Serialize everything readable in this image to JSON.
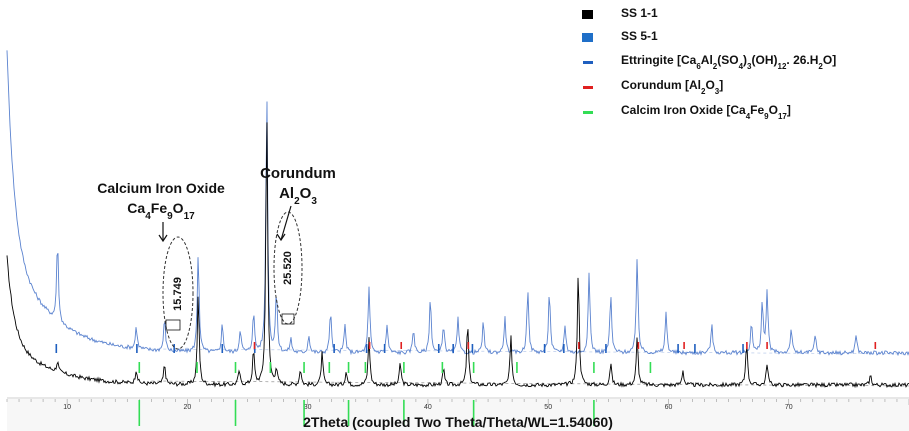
{
  "chart_data": {
    "type": "line",
    "title": "",
    "xlabel": "2Theta (coupled Two Theta/Theta/WL=1.54060)",
    "ylabel": "",
    "xlim": [
      5,
      80
    ],
    "x_ticks": [
      "10",
      "20",
      "30",
      "40",
      "50",
      "60",
      "70"
    ],
    "legend_position": "top-right",
    "legend": [
      {
        "label_parts": [
          {
            "t": "SS 1-1",
            "s": "n"
          }
        ],
        "color": "#000000",
        "marker": "square"
      },
      {
        "label_parts": [
          {
            "t": "SS 5-1",
            "s": "n"
          }
        ],
        "color": "#1f6fc8",
        "marker": "square"
      },
      {
        "label_parts": [
          {
            "t": "Ettringite [Ca",
            "s": "n"
          },
          {
            "t": "6",
            "s": "sub"
          },
          {
            "t": "Al",
            "s": "n"
          },
          {
            "t": "2",
            "s": "sub"
          },
          {
            "t": "(SO",
            "s": "n"
          },
          {
            "t": "4",
            "s": "sub"
          },
          {
            "t": ")",
            "s": "n"
          },
          {
            "t": "3",
            "s": "sub"
          },
          {
            "t": "(OH)",
            "s": "n"
          },
          {
            "t": "12",
            "s": "sub"
          },
          {
            "t": ". 26.H",
            "s": "n"
          },
          {
            "t": "2",
            "s": "sub"
          },
          {
            "t": "O]",
            "s": "n"
          }
        ],
        "color": "#1f5fbf",
        "marker": "dash"
      },
      {
        "label_parts": [
          {
            "t": "Corundum [Al",
            "s": "n"
          },
          {
            "t": "2",
            "s": "sub"
          },
          {
            "t": "O",
            "s": "n"
          },
          {
            "t": "3",
            "s": "sub"
          },
          {
            "t": "]",
            "s": "n"
          }
        ],
        "color": "#e02020",
        "marker": "dash"
      },
      {
        "label_parts": [
          {
            "t": "Calcim Iron Oxide [Ca",
            "s": "n"
          },
          {
            "t": "4",
            "s": "sub"
          },
          {
            "t": "Fe",
            "s": "n"
          },
          {
            "t": "9",
            "s": "sub"
          },
          {
            "t": "O",
            "s": "n"
          },
          {
            "t": "17",
            "s": "sub"
          },
          {
            "t": "]",
            "s": "n"
          }
        ],
        "color": "#33dd55",
        "marker": "dash"
      }
    ],
    "annotations": [
      {
        "lines": [
          [
            {
              "t": "Calcium Iron Oxide",
              "s": "n"
            }
          ],
          [
            {
              "t": "Ca",
              "s": "n"
            },
            {
              "t": "4",
              "s": "sub"
            },
            {
              "t": "Fe",
              "s": "n"
            },
            {
              "t": "9",
              "s": "sub"
            },
            {
              "t": "O",
              "s": "n"
            },
            {
              "t": "17",
              "s": "sub"
            }
          ]
        ],
        "peak_label": "15.749"
      },
      {
        "lines": [
          [
            {
              "t": "Corundum",
              "s": "n"
            }
          ],
          [
            {
              "t": "Al",
              "s": "n"
            },
            {
              "t": "2",
              "s": "sub"
            },
            {
              "t": "O",
              "s": "n"
            },
            {
              "t": "3",
              "s": "sub"
            }
          ]
        ],
        "peak_label": "25.520"
      }
    ],
    "series": [
      {
        "name": "SS 1-1",
        "color": "#000000",
        "baseline": 18,
        "peaks": [
          [
            9.2,
            10
          ],
          [
            15.75,
            14
          ],
          [
            18.1,
            20
          ],
          [
            20.9,
            90
          ],
          [
            24.3,
            14
          ],
          [
            25.5,
            34
          ],
          [
            26.6,
            275
          ],
          [
            27.4,
            16
          ],
          [
            29.4,
            16
          ],
          [
            31.2,
            32
          ],
          [
            33.2,
            14
          ],
          [
            35.1,
            48
          ],
          [
            37.7,
            22
          ],
          [
            41.3,
            16
          ],
          [
            43.3,
            62
          ],
          [
            46.9,
            48
          ],
          [
            52.5,
            115
          ],
          [
            55.2,
            22
          ],
          [
            57.4,
            48
          ],
          [
            61.2,
            15
          ],
          [
            66.5,
            44
          ],
          [
            68.2,
            22
          ],
          [
            76.8,
            10
          ]
        ]
      },
      {
        "name": "SS 5-1",
        "color": "#5b83cf",
        "baseline": 30,
        "peaks": [
          [
            9.2,
            80
          ],
          [
            15.75,
            22
          ],
          [
            18.1,
            32
          ],
          [
            20.9,
            100
          ],
          [
            22.9,
            28
          ],
          [
            24.4,
            24
          ],
          [
            25.5,
            40
          ],
          [
            26.6,
            260
          ],
          [
            27.4,
            60
          ],
          [
            28.6,
            14
          ],
          [
            30.1,
            18
          ],
          [
            31.9,
            42
          ],
          [
            33.1,
            28
          ],
          [
            35.1,
            65
          ],
          [
            36.6,
            28
          ],
          [
            38.8,
            24
          ],
          [
            40.2,
            55
          ],
          [
            41.3,
            28
          ],
          [
            42.5,
            34
          ],
          [
            44.6,
            30
          ],
          [
            46.4,
            35
          ],
          [
            48.3,
            65
          ],
          [
            50.1,
            62
          ],
          [
            51.4,
            28
          ],
          [
            53.4,
            80
          ],
          [
            55.2,
            58
          ],
          [
            57.4,
            96
          ],
          [
            59.8,
            40
          ],
          [
            63.6,
            28
          ],
          [
            66.9,
            30
          ],
          [
            67.8,
            50
          ],
          [
            68.2,
            60
          ],
          [
            70.2,
            24
          ],
          [
            72.2,
            18
          ],
          [
            75.6,
            18
          ]
        ]
      }
    ],
    "phase_markers": {
      "ettringite": [
        9.1,
        15.8,
        18.9,
        22.9,
        25.6,
        32.2,
        34.9,
        36.4,
        40.9,
        42.1,
        43.7,
        49.7,
        51.3,
        54.8,
        60.8,
        62.2,
        66.2
      ],
      "corundum": [
        25.58,
        35.15,
        37.78,
        43.36,
        52.55,
        57.5,
        61.3,
        66.52,
        68.2,
        77.2
      ],
      "calcium_iron_oxide": [
        16.0,
        20.8,
        24.0,
        26.9,
        29.7,
        31.8,
        33.4,
        34.8,
        38.0,
        41.2,
        43.8,
        47.4,
        53.8,
        58.5
      ]
    }
  }
}
